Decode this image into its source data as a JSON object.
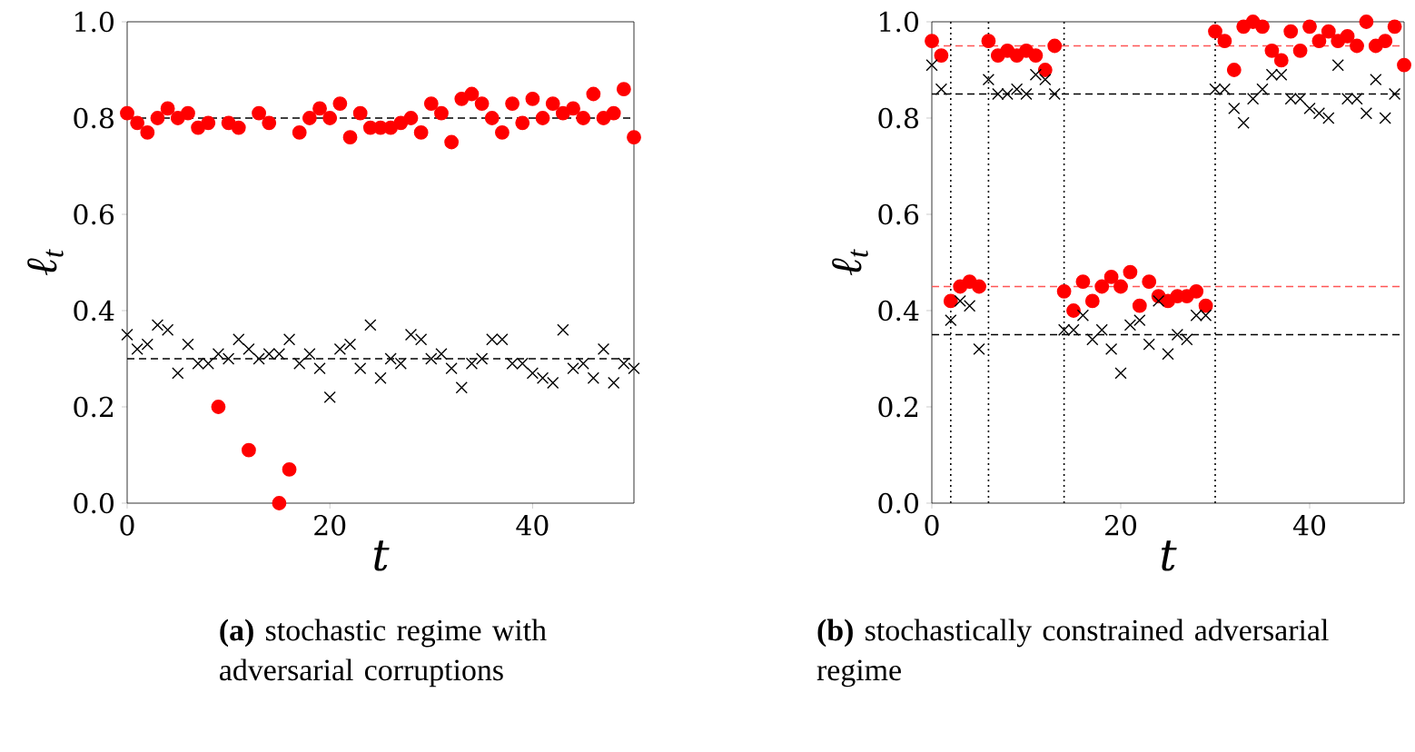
{
  "chart_data": [
    {
      "type": "scatter",
      "xlabel": "t",
      "ylabel": "ℓ$_{t}$",
      "xlim": [
        0,
        50
      ],
      "ylim": [
        0,
        1
      ],
      "xticks": [
        0,
        20,
        40
      ],
      "yticks": [
        {
          "value": 0,
          "label": "0.0"
        },
        {
          "value": 0.2,
          "label": "0.2"
        },
        {
          "value": 0.4,
          "label": "0.4"
        },
        {
          "value": 0.6,
          "label": "0.6"
        },
        {
          "value": 0.8,
          "label": "0.8"
        },
        {
          "value": 1,
          "label": "1.0"
        }
      ],
      "x": [
        0,
        1,
        2,
        3,
        4,
        5,
        6,
        7,
        8,
        9,
        10,
        11,
        12,
        13,
        14,
        15,
        16,
        17,
        18,
        19,
        20,
        21,
        22,
        23,
        24,
        25,
        26,
        27,
        28,
        29,
        30,
        31,
        32,
        33,
        34,
        35,
        36,
        37,
        38,
        39,
        40,
        41,
        42,
        43,
        44,
        45,
        46,
        47,
        48,
        49,
        50
      ],
      "series": [
        {
          "color": "#ff0000",
          "marker": "circle",
          "values": [
            0.81,
            0.79,
            0.77,
            0.8,
            0.82,
            0.8,
            0.81,
            0.78,
            0.79,
            0.2,
            0.79,
            0.78,
            0.11,
            0.81,
            0.79,
            0.0,
            0.07,
            0.77,
            0.8,
            0.82,
            0.8,
            0.83,
            0.76,
            0.81,
            0.78,
            0.78,
            0.78,
            0.79,
            0.8,
            0.77,
            0.83,
            0.81,
            0.75,
            0.84,
            0.85,
            0.83,
            0.8,
            0.77,
            0.83,
            0.79,
            0.84,
            0.8,
            0.83,
            0.81,
            0.82,
            0.8,
            0.85,
            0.8,
            0.81,
            0.86,
            0.76
          ]
        },
        {
          "color": "#000000",
          "marker": "cross",
          "values": [
            0.35,
            0.32,
            0.33,
            0.37,
            0.36,
            0.27,
            0.33,
            0.29,
            0.29,
            0.31,
            0.3,
            0.34,
            0.32,
            0.3,
            0.31,
            0.31,
            0.34,
            0.29,
            0.31,
            0.28,
            0.22,
            0.32,
            0.33,
            0.28,
            0.37,
            0.26,
            0.3,
            0.29,
            0.35,
            0.34,
            0.3,
            0.31,
            0.28,
            0.24,
            0.29,
            0.3,
            0.34,
            0.34,
            0.29,
            0.29,
            0.27,
            0.26,
            0.25,
            0.36,
            0.28,
            0.29,
            0.26,
            0.32,
            0.25,
            0.29,
            0.28
          ]
        }
      ],
      "ref_lines": [
        {
          "axis": "y",
          "value": 0.8,
          "color": "#000000",
          "line_style": "dashed"
        },
        {
          "axis": "y",
          "value": 0.3,
          "color": "#000000",
          "line_style": "dashed"
        }
      ],
      "annotations": [
        "**(a)** stochastic regime with adversarial corruptions"
      ]
    },
    {
      "type": "scatter",
      "xlabel": "t",
      "ylabel": "ℓ$_{t}$",
      "xlim": [
        0,
        50
      ],
      "ylim": [
        0,
        1
      ],
      "xticks": [
        0,
        20,
        40
      ],
      "yticks": [
        {
          "value": 0,
          "label": "0.0"
        },
        {
          "value": 0.2,
          "label": "0.2"
        },
        {
          "value": 0.4,
          "label": "0.4"
        },
        {
          "value": 0.6,
          "label": "0.6"
        },
        {
          "value": 0.8,
          "label": "0.8"
        },
        {
          "value": 1,
          "label": "1.0"
        }
      ],
      "x": [
        0,
        1,
        2,
        3,
        4,
        5,
        6,
        7,
        8,
        9,
        10,
        11,
        12,
        13,
        14,
        15,
        16,
        17,
        18,
        19,
        20,
        21,
        22,
        23,
        24,
        25,
        26,
        27,
        28,
        29,
        30,
        31,
        32,
        33,
        34,
        35,
        36,
        37,
        38,
        39,
        40,
        41,
        42,
        43,
        44,
        45,
        46,
        47,
        48,
        49,
        50
      ],
      "series": [
        {
          "color": "#ff0000",
          "marker": "circle",
          "values": [
            0.96,
            0.93,
            0.42,
            0.45,
            0.46,
            0.45,
            0.96,
            0.93,
            0.94,
            0.93,
            0.94,
            0.93,
            0.9,
            0.95,
            0.44,
            0.4,
            0.46,
            0.42,
            0.45,
            0.47,
            0.45,
            0.48,
            0.41,
            0.46,
            0.43,
            0.42,
            0.43,
            0.43,
            0.44,
            0.41,
            0.98,
            0.96,
            0.9,
            0.99,
            1.0,
            0.99,
            0.94,
            0.92,
            0.98,
            0.94,
            0.99,
            0.96,
            0.98,
            0.96,
            0.97,
            0.95,
            1.0,
            0.95,
            0.96,
            0.99,
            0.91
          ]
        },
        {
          "color": "#000000",
          "marker": "cross",
          "values": [
            0.91,
            0.86,
            0.38,
            0.42,
            0.41,
            0.32,
            0.88,
            0.85,
            0.85,
            0.86,
            0.85,
            0.89,
            0.88,
            0.85,
            0.36,
            0.36,
            0.39,
            0.34,
            0.36,
            0.32,
            0.27,
            0.37,
            0.38,
            0.33,
            0.42,
            0.31,
            0.35,
            0.34,
            0.39,
            0.39,
            0.86,
            0.86,
            0.82,
            0.79,
            0.84,
            0.86,
            0.89,
            0.89,
            0.84,
            0.84,
            0.82,
            0.81,
            0.8,
            0.91,
            0.84,
            0.84,
            0.81,
            0.88,
            0.8,
            0.85,
            null
          ]
        }
      ],
      "ref_lines": [
        {
          "axis": "y",
          "value": 0.95,
          "color": "#ff5555",
          "line_style": "dashed"
        },
        {
          "axis": "y",
          "value": 0.45,
          "color": "#ff5555",
          "line_style": "dashed"
        },
        {
          "axis": "y",
          "value": 0.85,
          "color": "#000000",
          "line_style": "dashed"
        },
        {
          "axis": "y",
          "value": 0.35,
          "color": "#000000",
          "line_style": "dashed"
        },
        {
          "axis": "x",
          "value": 2,
          "color": "#000000",
          "line_style": "dotted"
        },
        {
          "axis": "x",
          "value": 6,
          "color": "#000000",
          "line_style": "dotted"
        },
        {
          "axis": "x",
          "value": 14,
          "color": "#000000",
          "line_style": "dotted"
        },
        {
          "axis": "x",
          "value": 30,
          "color": "#000000",
          "line_style": "dotted"
        }
      ],
      "annotations": [
        "**(b)** stochastically constrained adversarial regime"
      ]
    }
  ]
}
